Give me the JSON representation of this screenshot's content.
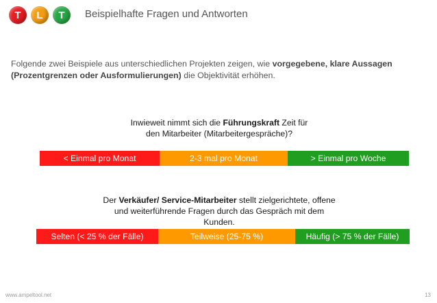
{
  "logo": {
    "letters": [
      {
        "char": "T",
        "color": "#e51c23"
      },
      {
        "char": "L",
        "color": "#f39c12"
      },
      {
        "char": "T",
        "color": "#27a644"
      }
    ]
  },
  "slide": {
    "title": "Beispielhafte Fragen und Antworten"
  },
  "intro": {
    "part1": "Folgende zwei Beispiele aus unterschiedlichen Projekten zeigen, wie ",
    "bold": "vorgegebene, klare Aussagen (Prozentgrenzen oder Ausformulierungen)",
    "part2": " die Objektivität erhöhen."
  },
  "example1": {
    "q_pre": "Inwieweit nimmt sich die ",
    "q_bold": "Führungskraft",
    "q_post": " Zeit für",
    "q_line2": "den Mitarbeiter (Mitarbeitergespräche)?",
    "options": [
      "<  Einmal pro Monat",
      "2-3 mal pro Monat",
      "> Einmal pro Woche"
    ]
  },
  "example2": {
    "q_pre": "Der ",
    "q_bold": "Verkäufer/ Service-Mitarbeiter",
    "q_post": " stellt zielgerichtete, offene",
    "q_line2": "und weiterführende Fragen durch das Gespräch mit dem",
    "q_line3": "Kunden.",
    "options": [
      "Selten (< 25 % der Fälle)",
      "Teilweise (25-75 %)",
      "Häufig (> 75 % der Fälle)"
    ]
  },
  "colors": {
    "red": "#ff1a1a",
    "orange": "#ff9900",
    "green": "#1f9e1f"
  },
  "footer": {
    "url": "www.ampeltool.net",
    "page": "13"
  }
}
